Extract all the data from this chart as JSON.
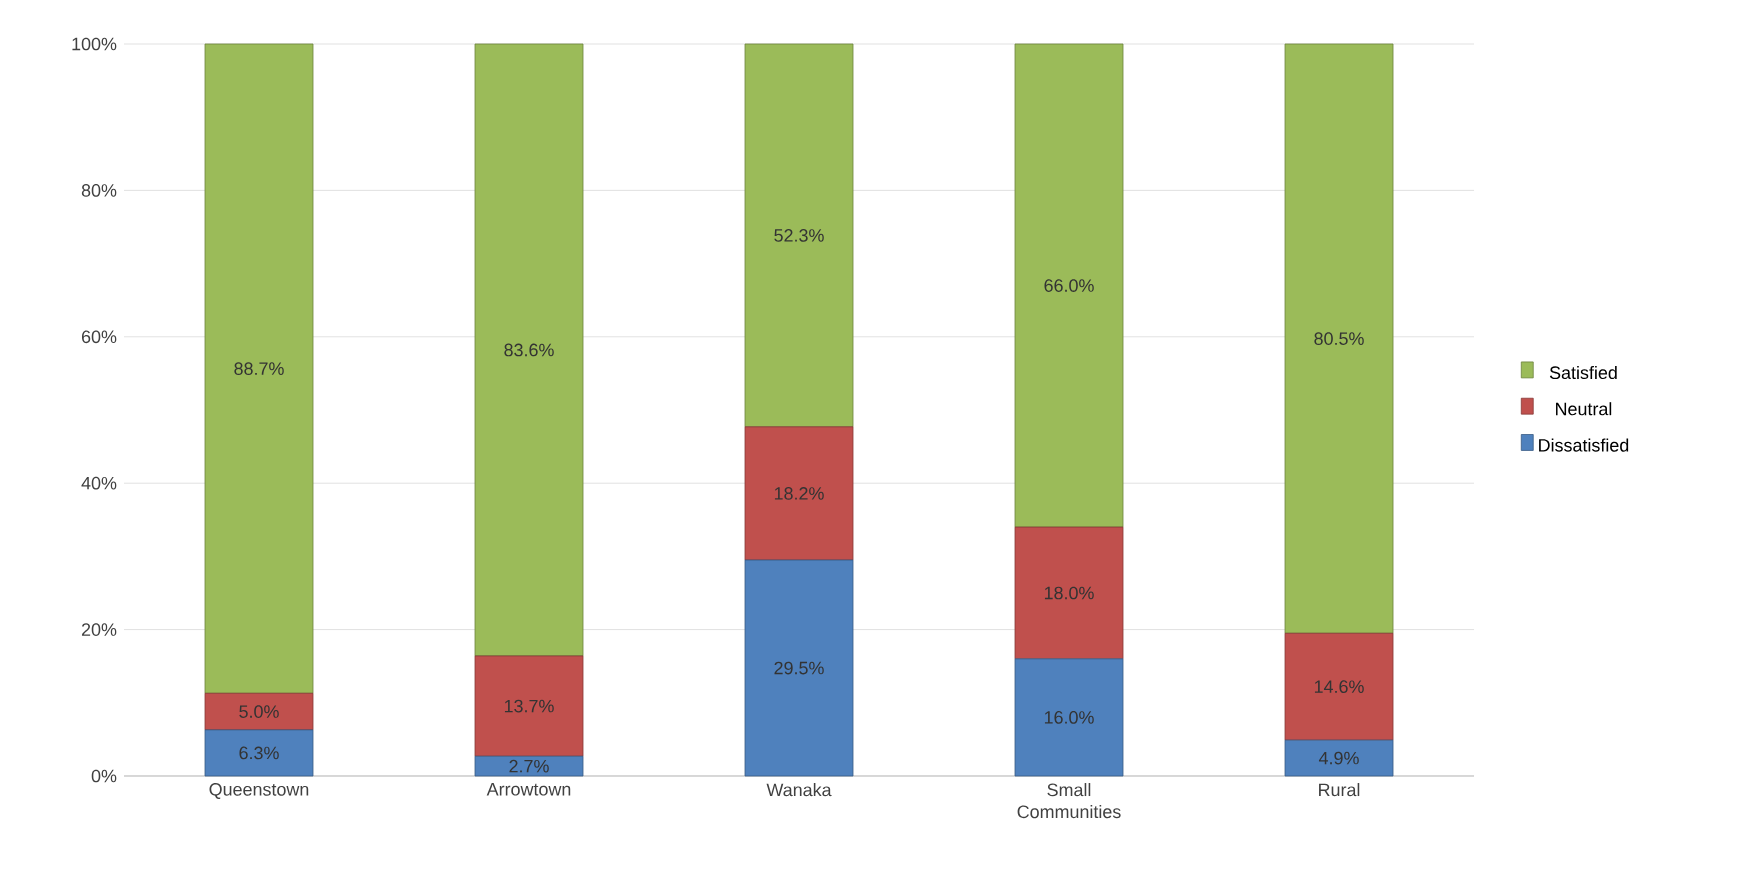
{
  "chart_data": {
    "type": "bar",
    "stacked": true,
    "categories": [
      "Queenstown",
      "Arrowtown",
      "Wanaka",
      "Small Communities",
      "Rural"
    ],
    "series": [
      {
        "name": "Dissatisfied",
        "color": "#4f81bd",
        "values": [
          6.3,
          2.7,
          29.5,
          16.0,
          4.9
        ],
        "value_labels": [
          "6.3%",
          "2.7%",
          "29.5%",
          "16.0%",
          "4.9%"
        ]
      },
      {
        "name": "Neutral",
        "color": "#c0504d",
        "values": [
          5.0,
          13.7,
          18.2,
          18.0,
          14.6
        ],
        "value_labels": [
          "5.0%",
          "13.7%",
          "18.2%",
          "18.0%",
          "14.6%"
        ]
      },
      {
        "name": "Satisfied",
        "color": "#9bbb59",
        "values": [
          88.7,
          83.6,
          52.3,
          66.0,
          80.5
        ],
        "value_labels": [
          "88.7%",
          "83.6%",
          "52.3%",
          "66.0%",
          "80.5%"
        ]
      }
    ],
    "ylim": [
      0,
      100
    ],
    "yticks": [
      {
        "value": 0,
        "label": "0%"
      },
      {
        "value": 20,
        "label": "20%"
      },
      {
        "value": 40,
        "label": "40%"
      },
      {
        "value": 60,
        "label": "60%"
      },
      {
        "value": 80,
        "label": "80%"
      },
      {
        "value": 100,
        "label": "100%"
      }
    ],
    "grid": "y",
    "legend": "right"
  }
}
